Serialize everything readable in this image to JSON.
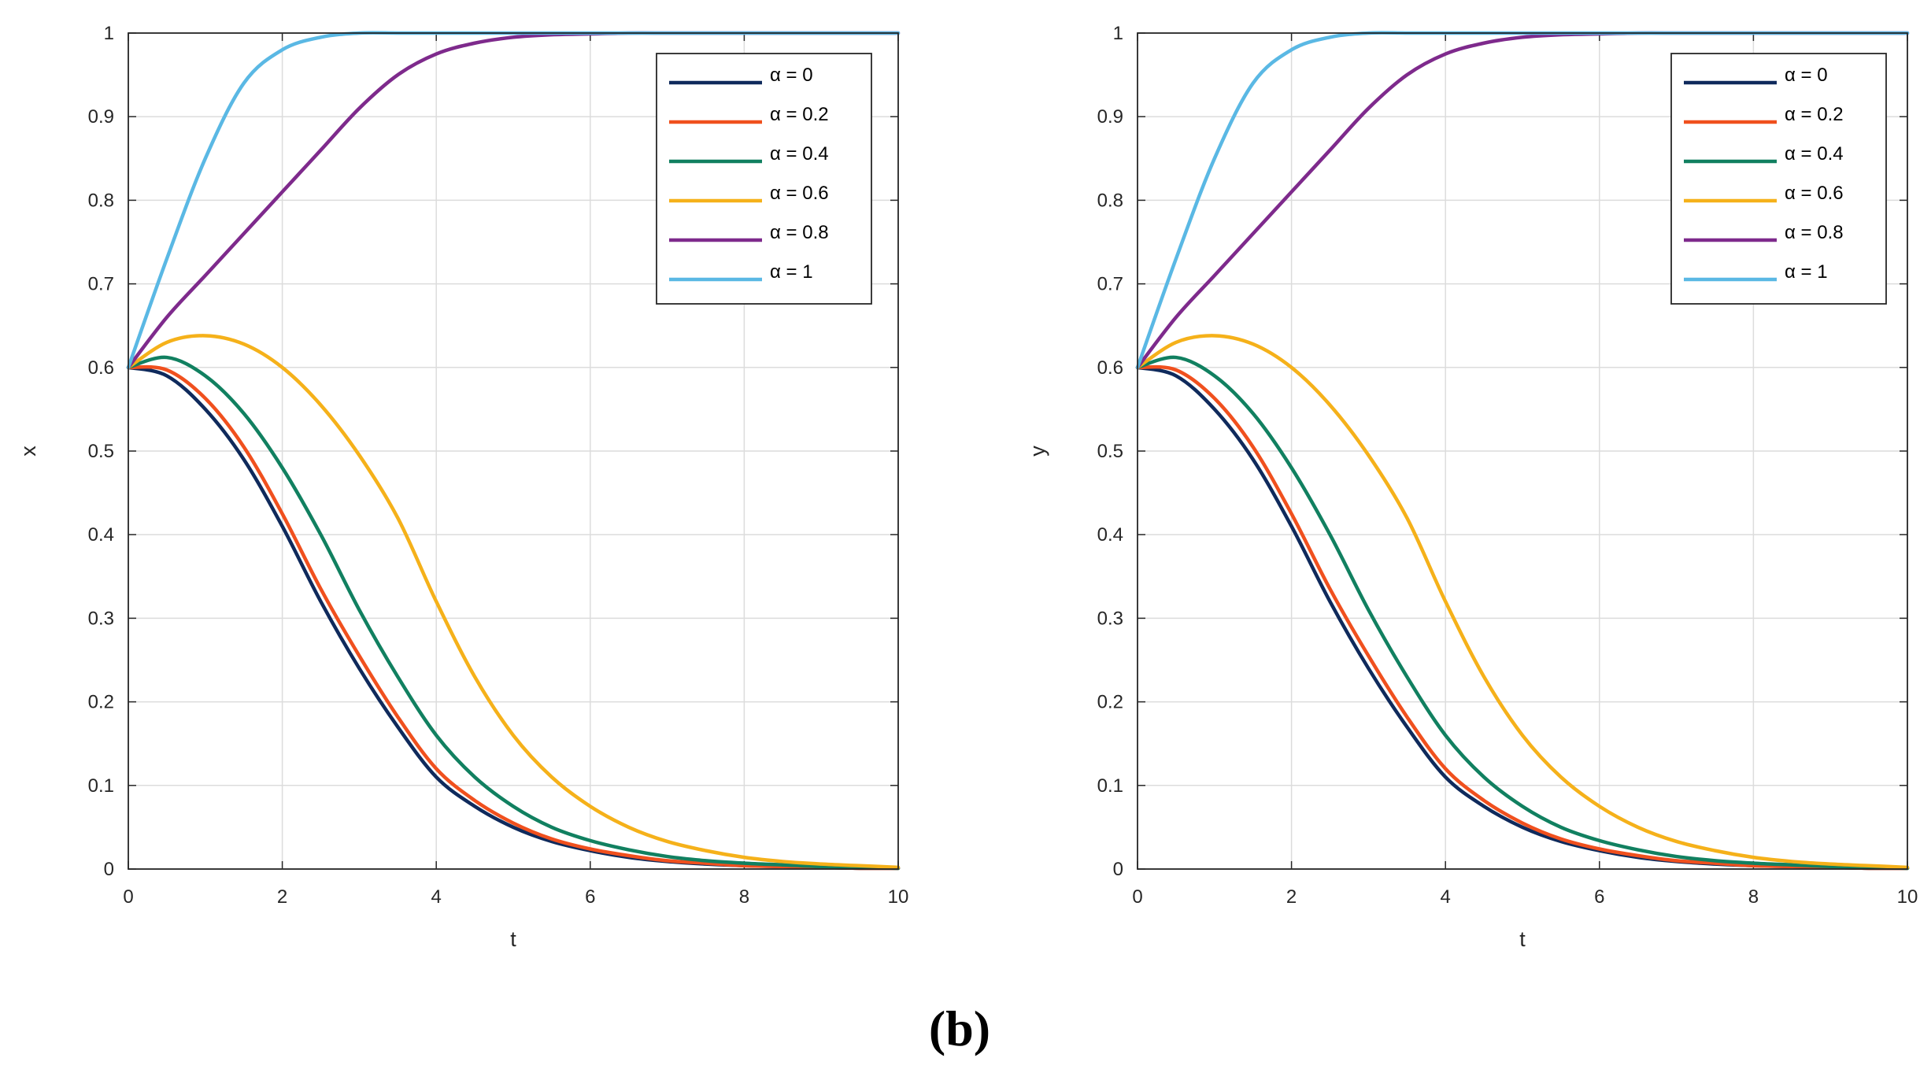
{
  "figure": {
    "caption": "(b)"
  },
  "colors": {
    "axis": "#262626",
    "grid": "#dcdcdc",
    "series": [
      "#0f2a5c",
      "#f0501e",
      "#118060",
      "#f5b11a",
      "#7e2a8c",
      "#5ab8e4"
    ]
  },
  "chart_data": [
    {
      "type": "line",
      "xlabel": "t",
      "ylabel": "x",
      "xlim": [
        0,
        10
      ],
      "ylim": [
        0,
        1
      ],
      "xticks": [
        "0",
        "2",
        "4",
        "6",
        "8",
        "10"
      ],
      "yticks": [
        "0",
        "0.1",
        "0.2",
        "0.3",
        "0.4",
        "0.5",
        "0.6",
        "0.7",
        "0.8",
        "0.9",
        "1"
      ],
      "grid": true,
      "legend_position": "top-right",
      "x": [
        0,
        0.5,
        1,
        1.5,
        2,
        2.5,
        3,
        3.5,
        4,
        4.5,
        5,
        5.5,
        6,
        6.5,
        7,
        7.5,
        8,
        8.5,
        9,
        9.5,
        10
      ],
      "series": [
        {
          "name": "α = 0",
          "values": [
            0.6,
            0.59,
            0.55,
            0.49,
            0.41,
            0.32,
            0.24,
            0.17,
            0.11,
            0.075,
            0.05,
            0.033,
            0.022,
            0.014,
            0.009,
            0.006,
            0.004,
            0.003,
            0.002,
            0.001,
            0.001
          ]
        },
        {
          "name": "α = 0.2",
          "values": [
            0.6,
            0.597,
            0.563,
            0.505,
            0.425,
            0.335,
            0.255,
            0.182,
            0.12,
            0.082,
            0.055,
            0.036,
            0.024,
            0.016,
            0.01,
            0.007,
            0.004,
            0.003,
            0.002,
            0.001,
            0.001
          ]
        },
        {
          "name": "α = 0.4",
          "values": [
            0.6,
            0.612,
            0.59,
            0.545,
            0.48,
            0.4,
            0.31,
            0.23,
            0.16,
            0.11,
            0.075,
            0.05,
            0.034,
            0.023,
            0.015,
            0.01,
            0.007,
            0.005,
            0.003,
            0.002,
            0.001
          ]
        },
        {
          "name": "α = 0.6",
          "values": [
            0.6,
            0.63,
            0.638,
            0.628,
            0.6,
            0.555,
            0.495,
            0.42,
            0.32,
            0.23,
            0.16,
            0.11,
            0.075,
            0.05,
            0.033,
            0.022,
            0.014,
            0.009,
            0.006,
            0.004,
            0.002
          ]
        },
        {
          "name": "α = 0.8",
          "values": [
            0.6,
            0.66,
            0.71,
            0.76,
            0.81,
            0.86,
            0.91,
            0.95,
            0.975,
            0.988,
            0.995,
            0.998,
            0.999,
            1.0,
            1.0,
            1.0,
            1.0,
            1.0,
            1.0,
            1.0,
            1.0
          ]
        },
        {
          "name": "α = 1",
          "values": [
            0.6,
            0.73,
            0.85,
            0.94,
            0.98,
            0.995,
            1.0,
            1.0,
            1.0,
            1.0,
            1.0,
            1.0,
            1.0,
            1.0,
            1.0,
            1.0,
            1.0,
            1.0,
            1.0,
            1.0,
            1.0
          ]
        }
      ]
    },
    {
      "type": "line",
      "xlabel": "t",
      "ylabel": "y",
      "xlim": [
        0,
        10
      ],
      "ylim": [
        0,
        1
      ],
      "xticks": [
        "0",
        "2",
        "4",
        "6",
        "8",
        "10"
      ],
      "yticks": [
        "0",
        "0.1",
        "0.2",
        "0.3",
        "0.4",
        "0.5",
        "0.6",
        "0.7",
        "0.8",
        "0.9",
        "1"
      ],
      "grid": true,
      "legend_position": "top-right",
      "x": [
        0,
        0.5,
        1,
        1.5,
        2,
        2.5,
        3,
        3.5,
        4,
        4.5,
        5,
        5.5,
        6,
        6.5,
        7,
        7.5,
        8,
        8.5,
        9,
        9.5,
        10
      ],
      "series": [
        {
          "name": "α = 0",
          "values": [
            0.6,
            0.59,
            0.55,
            0.49,
            0.41,
            0.32,
            0.24,
            0.17,
            0.11,
            0.075,
            0.05,
            0.033,
            0.022,
            0.014,
            0.009,
            0.006,
            0.004,
            0.003,
            0.002,
            0.001,
            0.001
          ]
        },
        {
          "name": "α = 0.2",
          "values": [
            0.6,
            0.597,
            0.563,
            0.505,
            0.425,
            0.335,
            0.255,
            0.182,
            0.12,
            0.082,
            0.055,
            0.036,
            0.024,
            0.016,
            0.01,
            0.007,
            0.004,
            0.003,
            0.002,
            0.001,
            0.001
          ]
        },
        {
          "name": "α = 0.4",
          "values": [
            0.6,
            0.612,
            0.59,
            0.545,
            0.48,
            0.4,
            0.31,
            0.23,
            0.16,
            0.11,
            0.075,
            0.05,
            0.034,
            0.023,
            0.015,
            0.01,
            0.007,
            0.005,
            0.003,
            0.002,
            0.001
          ]
        },
        {
          "name": "α = 0.6",
          "values": [
            0.6,
            0.63,
            0.638,
            0.628,
            0.6,
            0.555,
            0.495,
            0.42,
            0.32,
            0.23,
            0.16,
            0.11,
            0.075,
            0.05,
            0.033,
            0.022,
            0.014,
            0.009,
            0.006,
            0.004,
            0.002
          ]
        },
        {
          "name": "α = 0.8",
          "values": [
            0.6,
            0.66,
            0.71,
            0.76,
            0.81,
            0.86,
            0.91,
            0.95,
            0.975,
            0.988,
            0.995,
            0.998,
            0.999,
            1.0,
            1.0,
            1.0,
            1.0,
            1.0,
            1.0,
            1.0,
            1.0
          ]
        },
        {
          "name": "α = 1",
          "values": [
            0.6,
            0.73,
            0.85,
            0.94,
            0.98,
            0.995,
            1.0,
            1.0,
            1.0,
            1.0,
            1.0,
            1.0,
            1.0,
            1.0,
            1.0,
            1.0,
            1.0,
            1.0,
            1.0,
            1.0,
            1.0
          ]
        }
      ]
    }
  ]
}
